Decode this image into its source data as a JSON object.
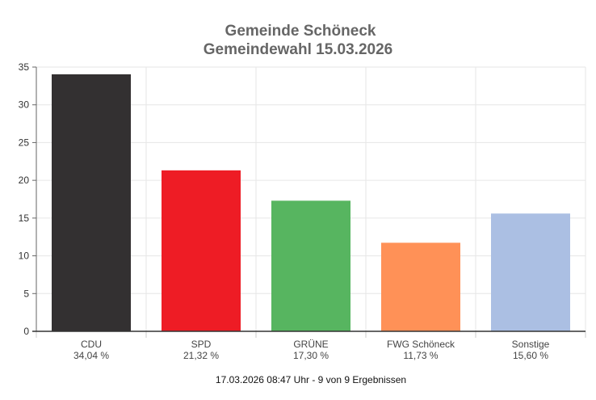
{
  "chart_data": {
    "type": "bar",
    "title": "Gemeinde Schöneck",
    "subtitle": "Gemeindewahl 15.03.2026",
    "categories": [
      "CDU",
      "SPD",
      "GRÜNE",
      "FWG Schöneck",
      "Sonstige"
    ],
    "values": [
      34.04,
      21.32,
      17.3,
      11.73,
      15.6
    ],
    "value_labels": [
      "34,04 %",
      "21,32 %",
      "17,30 %",
      "11,73 %",
      "15,60 %"
    ],
    "colors": [
      "#333031",
      "#ee1c25",
      "#57b560",
      "#ff9157",
      "#abbfe3"
    ],
    "ylim": [
      0,
      35
    ],
    "yticks": [
      "0",
      "5",
      "10",
      "15",
      "20",
      "25",
      "30",
      "35"
    ],
    "xlabel": "",
    "ylabel": "",
    "grid": true,
    "footer": "17.03.2026 08:47 Uhr - 9 von 9 Ergebnissen"
  }
}
